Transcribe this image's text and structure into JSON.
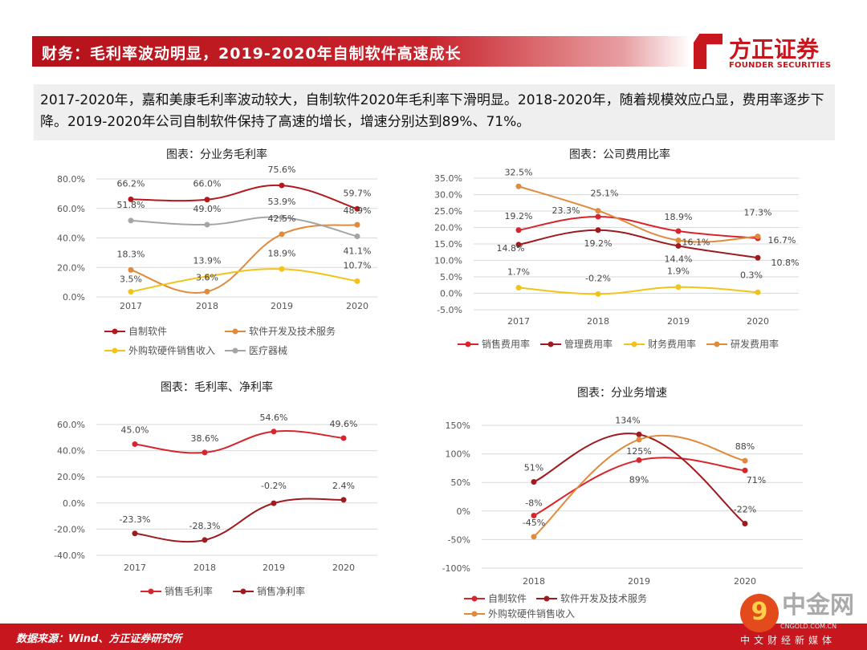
{
  "header": {
    "title": "财务：毛利率波动明显，2019-2020年自制软件高速成长"
  },
  "logo": {
    "cn": "方正证券",
    "en": "FOUNDER SECURITIES"
  },
  "summary": "2017-2020年，嘉和美康毛利率波动较大，自制软件2020年毛利率下滑明显。2018-2020年，随着规模效应凸显，费用率逐步下降。2019-2020年公司自制软件保持了高速的增长，增速分别达到89%、71%。",
  "footer": {
    "source": "数据来源：Wind、方正证券研究所"
  },
  "watermark": {
    "cn": "中金网",
    "url": "CNGOLD.COM.CN",
    "tag": "中文财经新媒体"
  },
  "colors": {
    "red": "#d7262b",
    "darkred": "#9e1a1e",
    "yellow": "#f2c318",
    "orange": "#e08a3c",
    "gray": "#a5a5a5",
    "brand": "#c8161e"
  },
  "chart_data": [
    {
      "type": "line",
      "title": "图表：分业务毛利率",
      "categories": [
        "2017",
        "2018",
        "2019",
        "2020"
      ],
      "yticks": [
        "0.0%",
        "20.0%",
        "40.0%",
        "60.0%",
        "80.0%"
      ],
      "ylim": [
        0,
        80
      ],
      "grid": true,
      "legend": "bottom",
      "series": [
        {
          "name": "自制软件",
          "color": "#b5171d",
          "values": [
            66.2,
            66.0,
            75.6,
            59.7
          ],
          "labels": [
            "66.2%",
            "66.0%",
            "75.6%",
            "59.7%"
          ]
        },
        {
          "name": "软件开发及技术服务",
          "color": "#e08a3c",
          "values": [
            18.3,
            3.6,
            42.5,
            48.9
          ],
          "labels": [
            "18.3%",
            "3.6%",
            "42.5%",
            "48.9%"
          ]
        },
        {
          "name": "外购软硬件销售收入",
          "color": "#f2c318",
          "values": [
            3.5,
            13.9,
            18.9,
            10.7
          ],
          "labels": [
            "3.5%",
            "13.9%",
            "18.9%",
            "10.7%"
          ]
        },
        {
          "name": "医疗器械",
          "color": "#a5a5a5",
          "values": [
            51.8,
            49.0,
            53.9,
            41.1
          ],
          "labels": [
            "51.8%",
            "49.0%",
            "53.9%",
            "41.1%"
          ]
        }
      ]
    },
    {
      "type": "line",
      "title": "图表：公司费用比率",
      "categories": [
        "2017",
        "2018",
        "2019",
        "2020"
      ],
      "yticks": [
        "-5.0%",
        "0.0%",
        "5.0%",
        "10.0%",
        "15.0%",
        "20.0%",
        "25.0%",
        "30.0%",
        "35.0%"
      ],
      "ylim": [
        -5,
        35
      ],
      "grid": true,
      "legend": "bottom",
      "series": [
        {
          "name": "销售费用率",
          "color": "#d7262b",
          "values": [
            19.2,
            23.3,
            18.9,
            16.7
          ],
          "labels": [
            "19.2%",
            "23.3%",
            "18.9%",
            "16.7%"
          ]
        },
        {
          "name": "管理费用率",
          "color": "#9e1a1e",
          "values": [
            14.8,
            19.2,
            14.4,
            10.8
          ],
          "labels": [
            "14.8%",
            "19.2%",
            "14.4%",
            "10.8%"
          ]
        },
        {
          "name": "财务费用率",
          "color": "#f2c318",
          "values": [
            1.7,
            -0.2,
            1.9,
            0.3
          ],
          "labels": [
            "1.7%",
            "-0.2%",
            "1.9%",
            "0.3%"
          ]
        },
        {
          "name": "研发费用率",
          "color": "#e08a3c",
          "values": [
            32.5,
            25.1,
            16.1,
            17.3
          ],
          "labels": [
            "32.5%",
            "25.1%",
            "16.1%",
            "17.3%"
          ]
        }
      ]
    },
    {
      "type": "line",
      "title": "图表：毛利率、净利率",
      "categories": [
        "2017",
        "2018",
        "2019",
        "2020"
      ],
      "yticks": [
        "-40.0%",
        "-20.0%",
        "0.0%",
        "20.0%",
        "40.0%",
        "60.0%"
      ],
      "ylim": [
        -40,
        60
      ],
      "grid": true,
      "legend": "bottom",
      "series": [
        {
          "name": "销售毛利率",
          "color": "#d7262b",
          "values": [
            45.0,
            38.6,
            54.6,
            49.6
          ],
          "labels": [
            "45.0%",
            "38.6%",
            "54.6%",
            "49.6%"
          ]
        },
        {
          "name": "销售净利率",
          "color": "#9e1a1e",
          "values": [
            -23.3,
            -28.3,
            -0.2,
            2.4
          ],
          "labels": [
            "-23.3%",
            "-28.3%",
            "-0.2%",
            "2.4%"
          ]
        }
      ]
    },
    {
      "type": "line",
      "title": "图表：分业务增速",
      "categories": [
        "2018",
        "2019",
        "2020"
      ],
      "yticks": [
        "-100%",
        "-50%",
        "0%",
        "50%",
        "100%",
        "150%"
      ],
      "ylim": [
        -100,
        150
      ],
      "grid": true,
      "legend": "bottom",
      "series": [
        {
          "name": "自制软件",
          "color": "#d7262b",
          "values": [
            -8,
            89,
            71
          ],
          "labels": [
            "-8%",
            "89%",
            "71%"
          ]
        },
        {
          "name": "软件开发及技术服务",
          "color": "#9e1a1e",
          "values": [
            51,
            134,
            -22
          ],
          "labels": [
            "51%",
            "134%",
            "-22%"
          ]
        },
        {
          "name": "外购软硬件销售收入",
          "color": "#e08a3c",
          "values": [
            -45,
            125,
            88
          ],
          "labels": [
            "-45%",
            "125%",
            "88%"
          ]
        }
      ]
    }
  ]
}
